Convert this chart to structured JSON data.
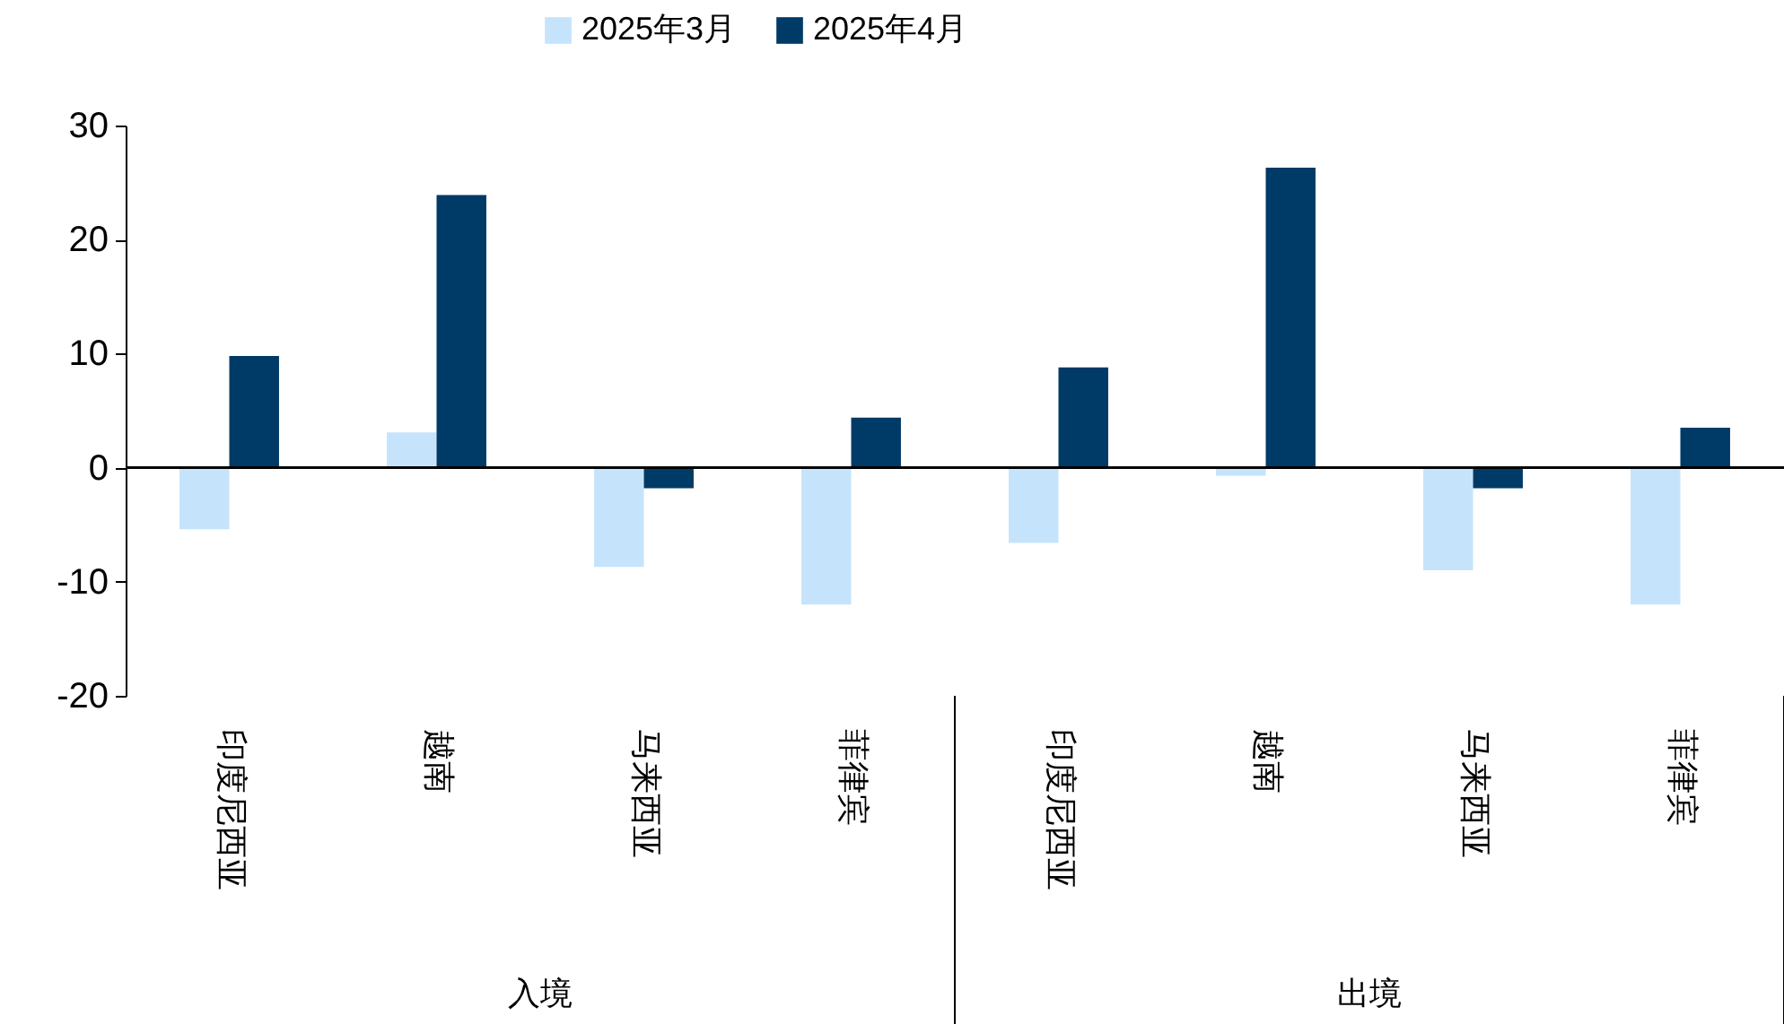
{
  "chart_data": {
    "type": "bar",
    "categories": [
      "印度尼西亚",
      "越南",
      "马来西亚",
      "菲律宾",
      "印度尼西亚",
      "越南",
      "马来西亚",
      "菲律宾"
    ],
    "series": [
      {
        "name": "2025年3月",
        "color": "#c5e4fb",
        "values": [
          -5.4,
          3.1,
          -8.7,
          -12.0,
          -6.6,
          -0.7,
          -9.0,
          -12.0
        ]
      },
      {
        "name": "2025年4月",
        "color": "#003a66",
        "values": [
          9.8,
          23.9,
          -1.8,
          4.4,
          8.8,
          26.3,
          -1.8,
          3.5
        ]
      }
    ],
    "ylim": [
      -20,
      30
    ],
    "yticks": [
      -20,
      -10,
      0,
      10,
      20,
      30
    ],
    "grid": false,
    "legend": "top",
    "ref_lines": [
      {
        "axis": "y",
        "value": 0,
        "color": "#000000"
      }
    ],
    "annotations": [
      "入境",
      "出境"
    ]
  }
}
